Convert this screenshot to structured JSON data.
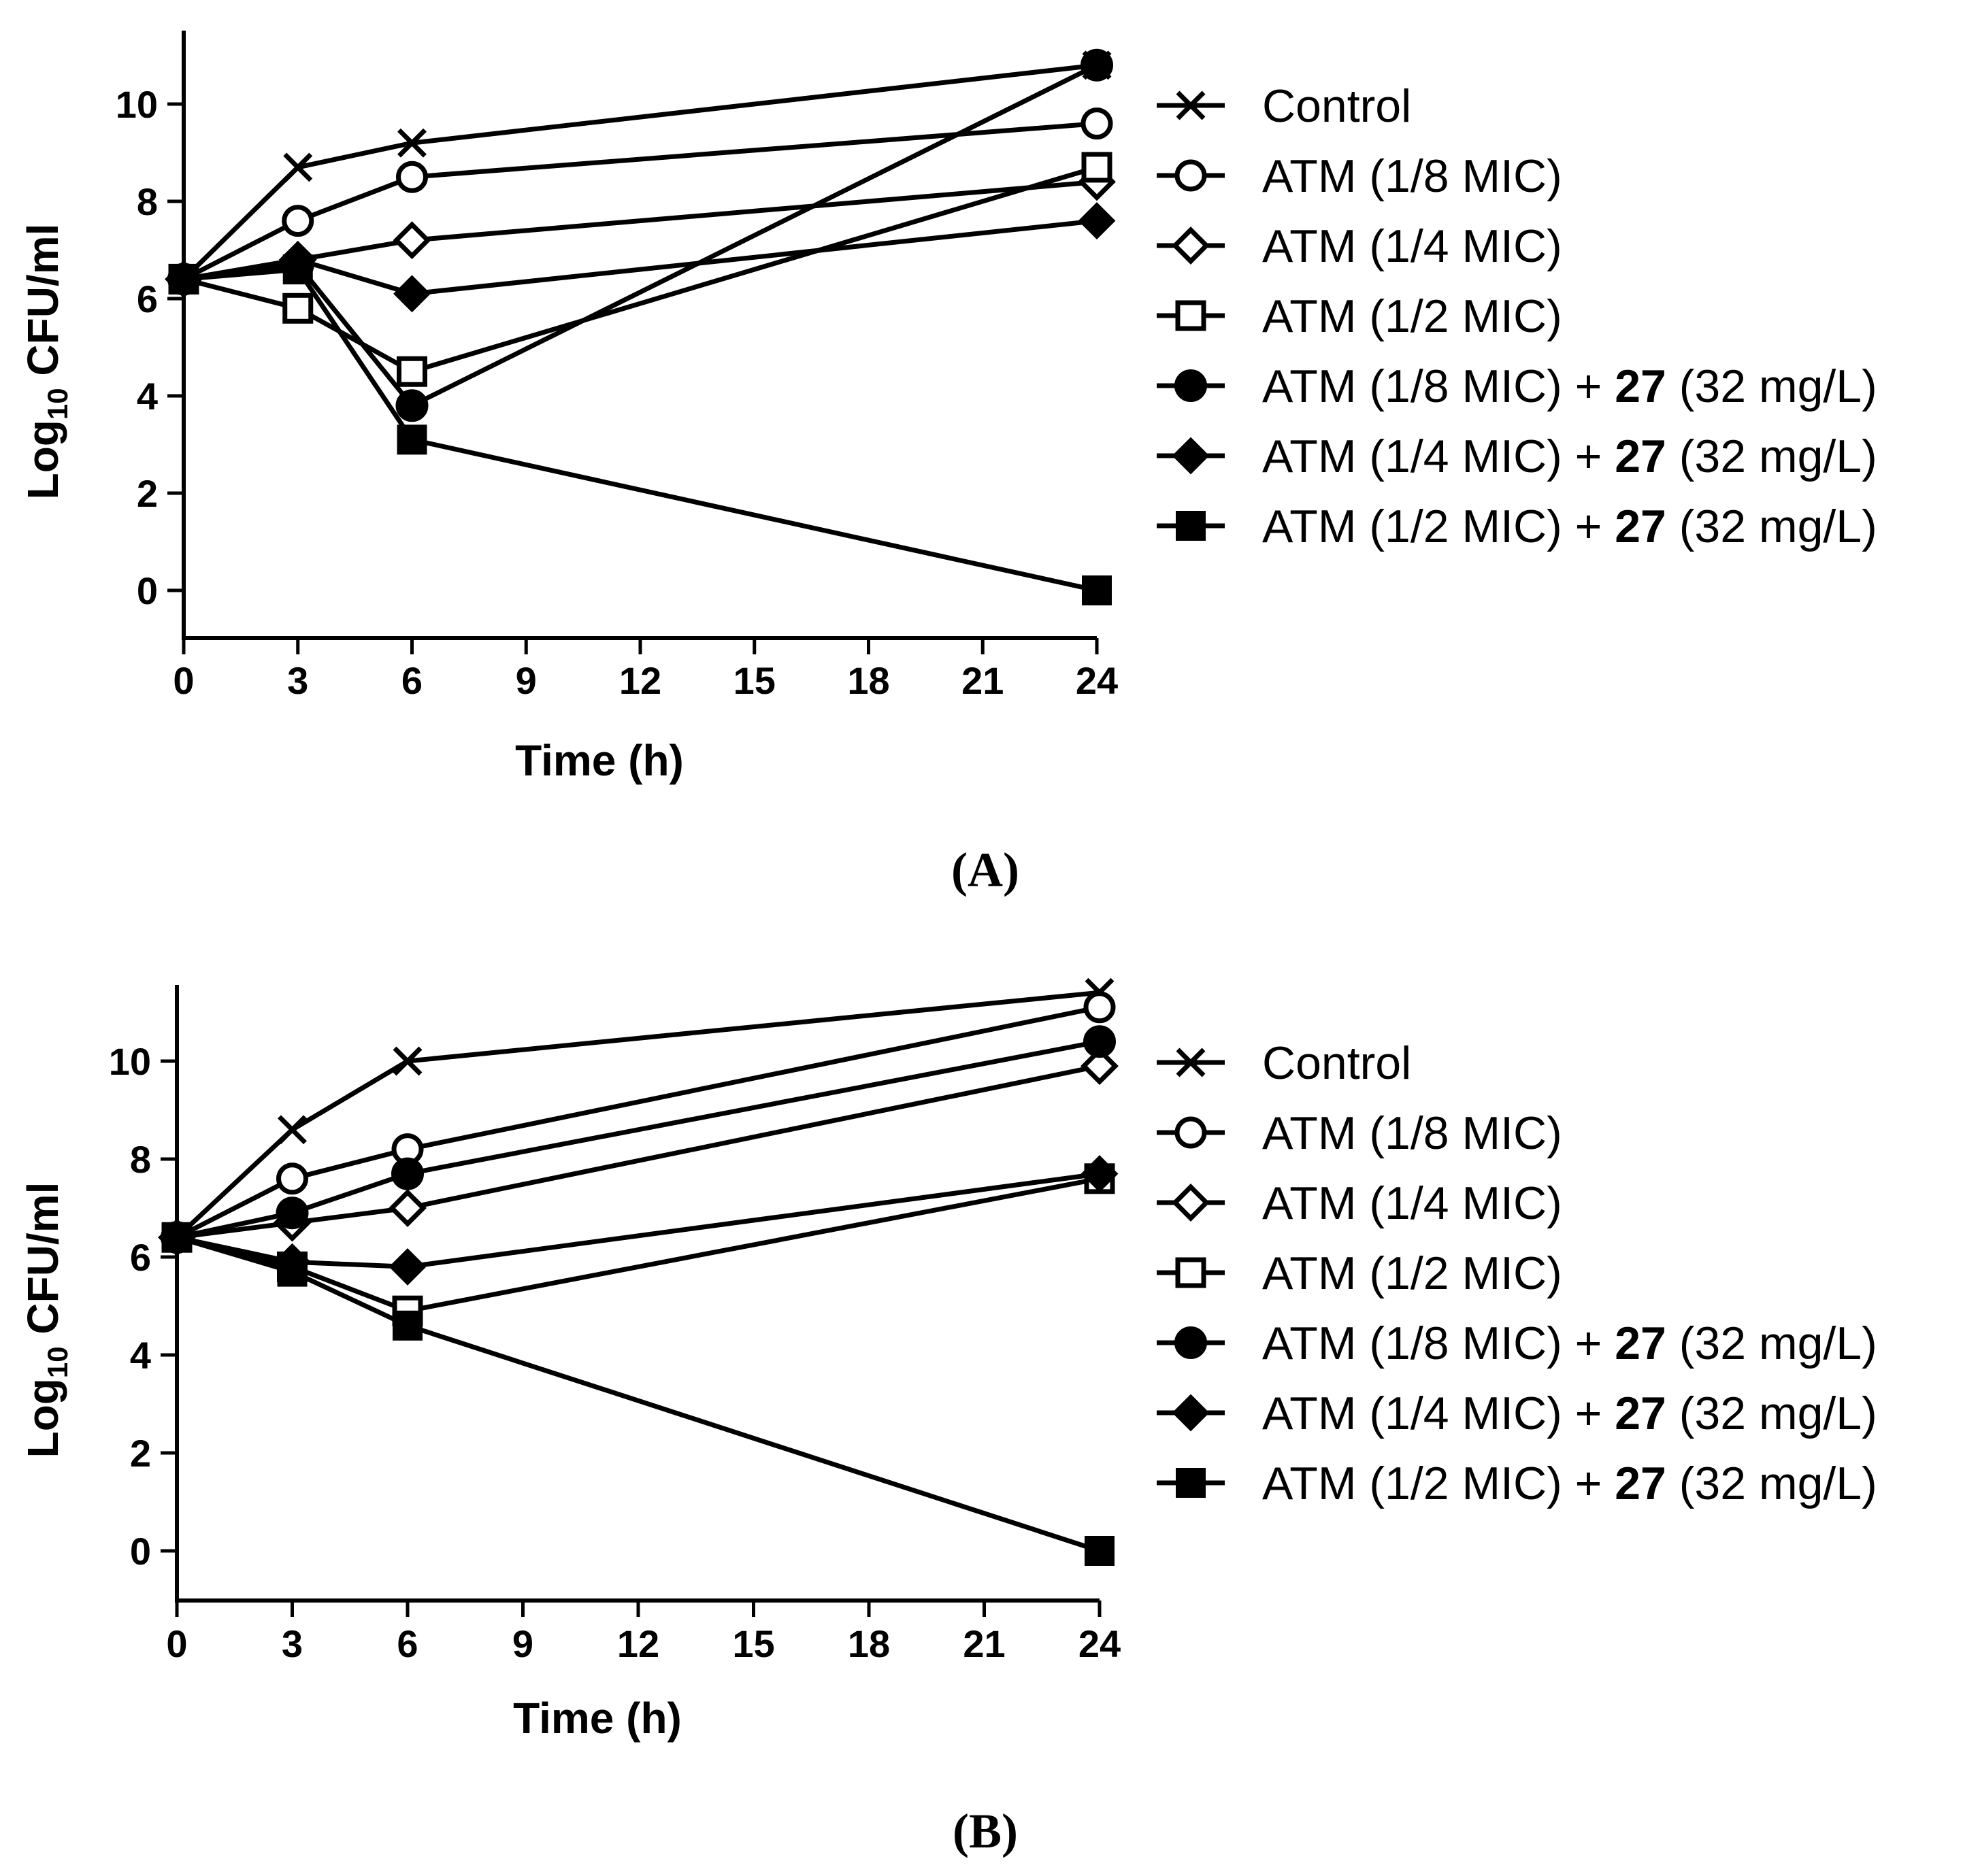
{
  "chart_data": [
    {
      "id": "A",
      "type": "line",
      "panel_label": "(A)",
      "xlabel": "Time (h)",
      "ylabel": {
        "prefix": "Log",
        "subscript": "10",
        "suffix": " CFU/ml"
      },
      "xlim": [
        0,
        24
      ],
      "ylim": [
        -1,
        11.5
      ],
      "xticks": [
        0,
        3,
        6,
        9,
        12,
        15,
        18,
        21,
        24
      ],
      "yticks": [
        0,
        2,
        4,
        6,
        8,
        10
      ],
      "grid": false,
      "legend_position": "right",
      "x": [
        0,
        3,
        6,
        24
      ],
      "series": [
        {
          "name": "Control",
          "marker": "cross",
          "values": [
            6.4,
            8.7,
            9.2,
            10.8
          ]
        },
        {
          "name": "ATM (1/8 MIC)",
          "marker": "circle-open",
          "values": [
            6.4,
            7.6,
            8.5,
            9.6
          ]
        },
        {
          "name": "ATM (1/4 MIC)",
          "marker": "diamond-open",
          "values": [
            6.4,
            6.8,
            7.2,
            8.4
          ]
        },
        {
          "name": "ATM (1/2 MIC)",
          "marker": "square-open",
          "values": [
            6.4,
            5.8,
            4.5,
            8.7
          ]
        },
        {
          "name": "ATM (1/8 MIC) + 27 (32 mg/L)",
          "marker": "circle-filled",
          "values": [
            6.4,
            6.7,
            3.8,
            10.8
          ]
        },
        {
          "name": "ATM (1/4 MIC) + 27 (32 mg/L)",
          "marker": "diamond-filled",
          "values": [
            6.4,
            6.8,
            6.1,
            7.6
          ]
        },
        {
          "name": "ATM (1/2 MIC) + 27 (32 mg/L)",
          "marker": "square-filled",
          "values": [
            6.4,
            6.6,
            3.1,
            0.0
          ]
        }
      ]
    },
    {
      "id": "B",
      "type": "line",
      "panel_label": "(B)",
      "xlabel": "Time (h)",
      "ylabel": {
        "prefix": "Log",
        "subscript": "10",
        "suffix": " CFU/ml"
      },
      "xlim": [
        0,
        24
      ],
      "ylim": [
        -1,
        11.5
      ],
      "xticks": [
        0,
        3,
        6,
        9,
        12,
        15,
        18,
        21,
        24
      ],
      "yticks": [
        0,
        2,
        4,
        6,
        8,
        10
      ],
      "grid": false,
      "legend_position": "right",
      "x": [
        0,
        3,
        6,
        24
      ],
      "series": [
        {
          "name": "Control",
          "marker": "cross",
          "values": [
            6.4,
            8.6,
            10.0,
            11.4
          ]
        },
        {
          "name": "ATM (1/8 MIC)",
          "marker": "circle-open",
          "values": [
            6.4,
            7.6,
            8.2,
            11.1
          ]
        },
        {
          "name": "ATM (1/4 MIC)",
          "marker": "diamond-open",
          "values": [
            6.4,
            6.7,
            7.0,
            9.9
          ]
        },
        {
          "name": "ATM (1/2 MIC)",
          "marker": "square-open",
          "values": [
            6.4,
            5.8,
            4.9,
            7.6
          ]
        },
        {
          "name": "ATM (1/8 MIC) + 27 (32 mg/L)",
          "marker": "circle-filled",
          "values": [
            6.4,
            6.9,
            7.7,
            10.4
          ]
        },
        {
          "name": "ATM (1/4 MIC) + 27 (32 mg/L)",
          "marker": "diamond-filled",
          "values": [
            6.4,
            5.9,
            5.8,
            7.7
          ]
        },
        {
          "name": "ATM (1/2 MIC) + 27 (32 mg/L)",
          "marker": "square-filled",
          "values": [
            6.4,
            5.7,
            4.6,
            0.0
          ]
        }
      ]
    }
  ],
  "legend_format": {
    "bold_token": "27"
  },
  "colors": {
    "ink": "#000000",
    "background": "#ffffff"
  }
}
